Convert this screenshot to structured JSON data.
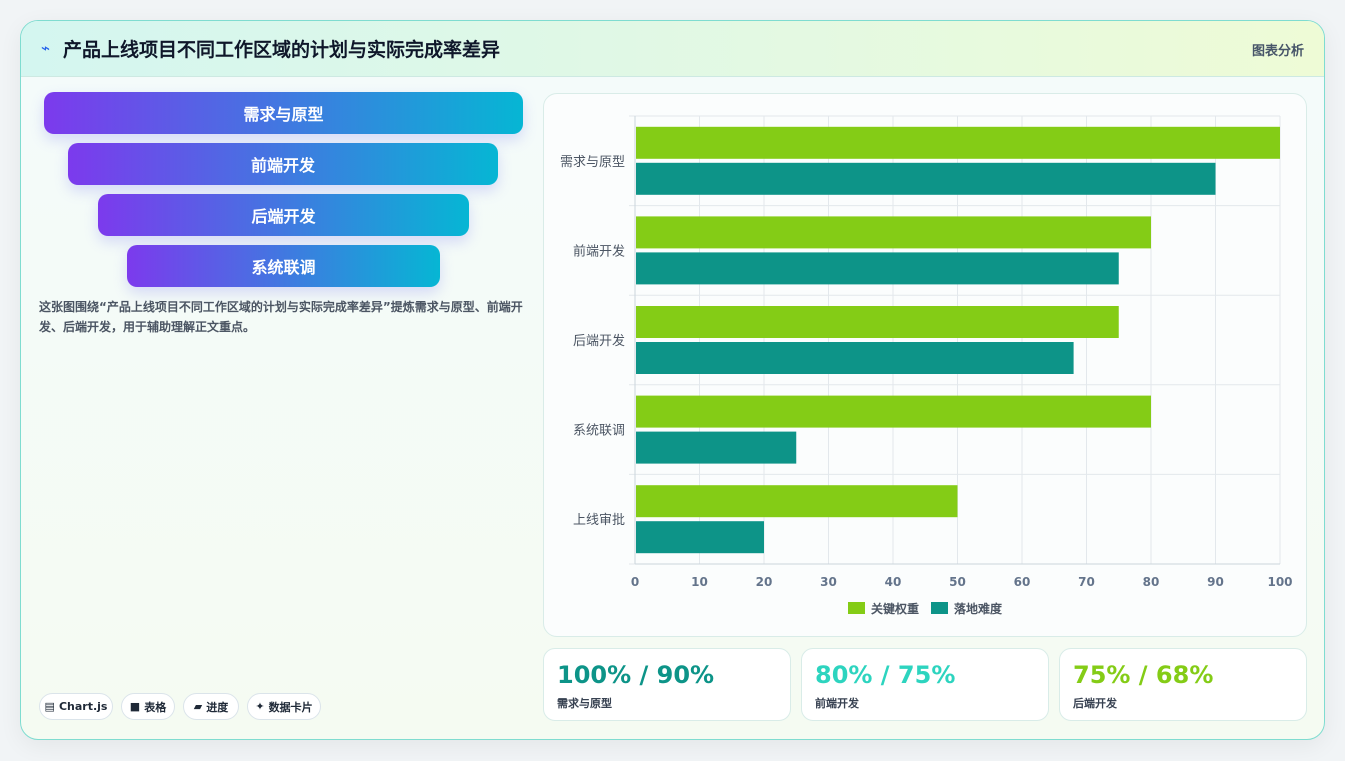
{
  "header": {
    "logo_icon": "lightning-icon",
    "title": "产品上线项目不同工作区域的计划与实际完成率差异",
    "tag": "图表分析"
  },
  "funnel": {
    "items": [
      "需求与原型",
      "前端开发",
      "后端开发",
      "系统联调"
    ]
  },
  "description": "这张图围绕“产品上线项目不同工作区域的计划与实际完成率差异”提炼需求与原型、前端开发、后端开发，用于辅助理解正文重点。",
  "chips": [
    {
      "icon": "▤",
      "label": "Chart.js"
    },
    {
      "icon": "■",
      "label": "表格"
    },
    {
      "icon": "▰",
      "label": "进度"
    },
    {
      "icon": "✦",
      "label": "数据卡片"
    }
  ],
  "chart_data": {
    "type": "bar",
    "orientation": "horizontal",
    "categories": [
      "需求与原型",
      "前端开发",
      "后端开发",
      "系统联调",
      "上线审批"
    ],
    "series": [
      {
        "name": "关键权重",
        "values": [
          100,
          80,
          75,
          80,
          50
        ],
        "color": "#84cc16"
      },
      {
        "name": "落地难度",
        "values": [
          90,
          75,
          68,
          25,
          20
        ],
        "color": "#0d9488"
      }
    ],
    "xlim": [
      0,
      100
    ],
    "xticks": [
      "0",
      "10",
      "20",
      "30",
      "40",
      "50",
      "60",
      "70",
      "80",
      "90",
      "100"
    ],
    "grid": true,
    "legend": "bottom"
  },
  "stats": [
    {
      "value": "100% / 90%",
      "label": "需求与原型",
      "color": "#0d9488"
    },
    {
      "value": "80% / 75%",
      "label": "前端开发",
      "color": "#2dd4bf"
    },
    {
      "value": "75% / 68%",
      "label": "后端开发",
      "color": "#84cc16"
    }
  ]
}
